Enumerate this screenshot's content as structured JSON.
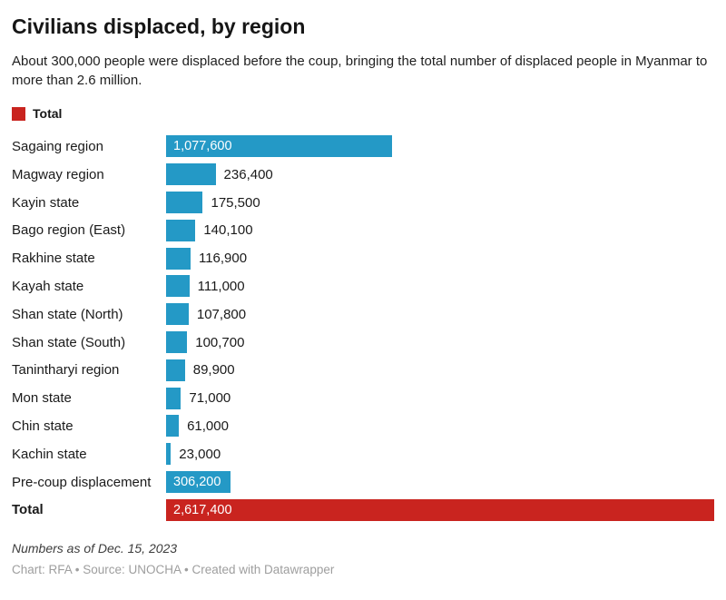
{
  "header": {
    "title": "Civilians displaced, by region",
    "subtitle": "About 300,000 people were displaced before the coup, bringing the total number of displaced people in Myanmar to more than 2.6 million."
  },
  "legend": {
    "label": "Total",
    "color": "#c9241f"
  },
  "chart_data": {
    "type": "bar",
    "orientation": "horizontal",
    "title": "Civilians displaced, by region",
    "xlabel": "",
    "ylabel": "",
    "xlim": [
      0,
      2617400
    ],
    "grid": false,
    "legend_position": "top-left",
    "series_color": "#2499c6",
    "total_color": "#c9241f",
    "categories": [
      "Sagaing region",
      "Magway region",
      "Kayin state",
      "Bago region (East)",
      "Rakhine state",
      "Kayah state",
      "Shan state (North)",
      "Shan state (South)",
      "Tanintharyi region",
      "Mon state",
      "Chin state",
      "Kachin state",
      "Pre-coup displacement",
      "Total"
    ],
    "values": [
      1077600,
      236400,
      175500,
      140100,
      116900,
      111000,
      107800,
      100700,
      89900,
      71000,
      61000,
      23000,
      306200,
      2617400
    ],
    "value_labels": [
      "1,077,600",
      "236,400",
      "175,500",
      "140,100",
      "116,900",
      "111,000",
      "107,800",
      "100,700",
      "89,900",
      "71,000",
      "61,000",
      "23,000",
      "306,200",
      "2,617,400"
    ],
    "label_inside_bar": [
      true,
      false,
      false,
      false,
      false,
      false,
      false,
      false,
      false,
      false,
      false,
      false,
      true,
      true
    ],
    "is_total_row": [
      false,
      false,
      false,
      false,
      false,
      false,
      false,
      false,
      false,
      false,
      false,
      false,
      false,
      true
    ]
  },
  "footer": {
    "note": "Numbers as of Dec. 15, 2023",
    "byline": "Chart: RFA • Source: UNOCHA • Created with Datawrapper"
  }
}
